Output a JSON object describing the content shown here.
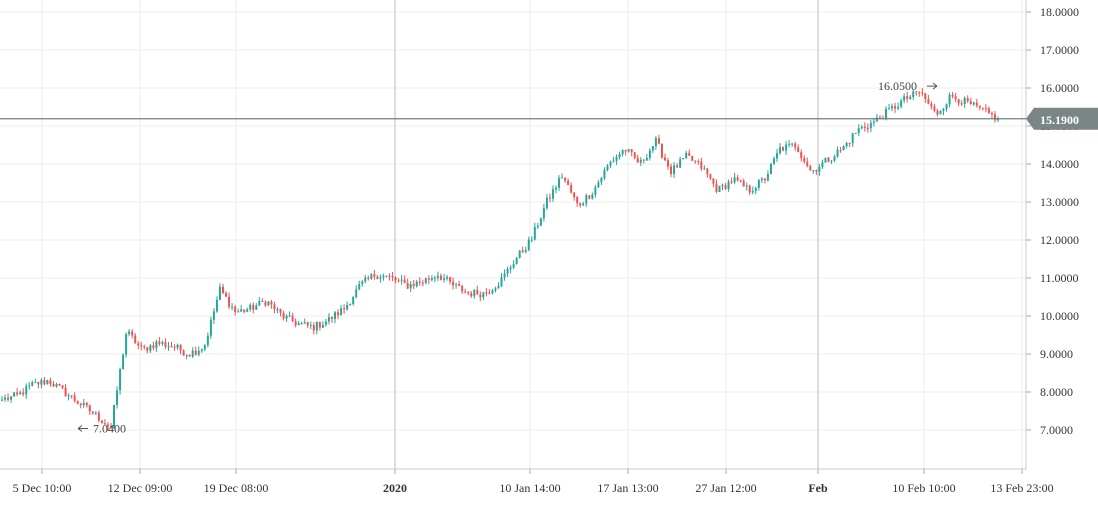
{
  "chart_data": {
    "type": "candlestick",
    "title": "",
    "xlabel": "",
    "ylabel": "",
    "ylim": [
      6,
      18.2
    ],
    "y_ticks": [
      "7.0000",
      "8.0000",
      "9.0000",
      "10.0000",
      "11.0000",
      "12.0000",
      "13.0000",
      "14.0000",
      "15.0000",
      "16.0000",
      "17.0000",
      "18.0000"
    ],
    "x_ticks": [
      {
        "label": "5 Dec 10:00",
        "bold": false
      },
      {
        "label": "12 Dec 09:00",
        "bold": false
      },
      {
        "label": "19 Dec 08:00",
        "bold": false
      },
      {
        "label": "2020",
        "bold": true
      },
      {
        "label": "10 Jan 14:00",
        "bold": false
      },
      {
        "label": "17 Jan 13:00",
        "bold": false
      },
      {
        "label": "27 Jan 12:00",
        "bold": false
      },
      {
        "label": "Feb",
        "bold": true
      },
      {
        "label": "10 Feb 10:00",
        "bold": false
      },
      {
        "label": "13 Feb 23:00",
        "bold": false
      }
    ],
    "last_price": "15.1900",
    "low_annotation": "7.0400",
    "high_annotation": "16.0500",
    "colors": {
      "up": "#26a69a",
      "down": "#ef5350",
      "grid": "#eeeeee",
      "price_line": "#6f7f7f",
      "price_label_bg": "#7a8686"
    },
    "approx_close_path": [
      7.8,
      7.9,
      8.2,
      8.3,
      8.0,
      7.7,
      7.4,
      7.05,
      9.6,
      9.1,
      9.3,
      9.2,
      9.0,
      9.2,
      10.7,
      10.1,
      10.2,
      10.4,
      10.0,
      9.8,
      9.7,
      9.9,
      10.2,
      10.8,
      11.1,
      11.0,
      10.8,
      10.9,
      11.1,
      10.8,
      10.6,
      10.6,
      10.9,
      11.5,
      12.0,
      13.0,
      13.7,
      12.9,
      13.3,
      14.0,
      14.4,
      14.0,
      14.6,
      13.8,
      14.2,
      13.9,
      13.3,
      13.6,
      13.3,
      13.6,
      14.4,
      14.5,
      13.8,
      14.1,
      14.4,
      14.9,
      15.1,
      15.4,
      15.7,
      15.9,
      15.3,
      15.8,
      15.6,
      15.4,
      15.19
    ]
  }
}
